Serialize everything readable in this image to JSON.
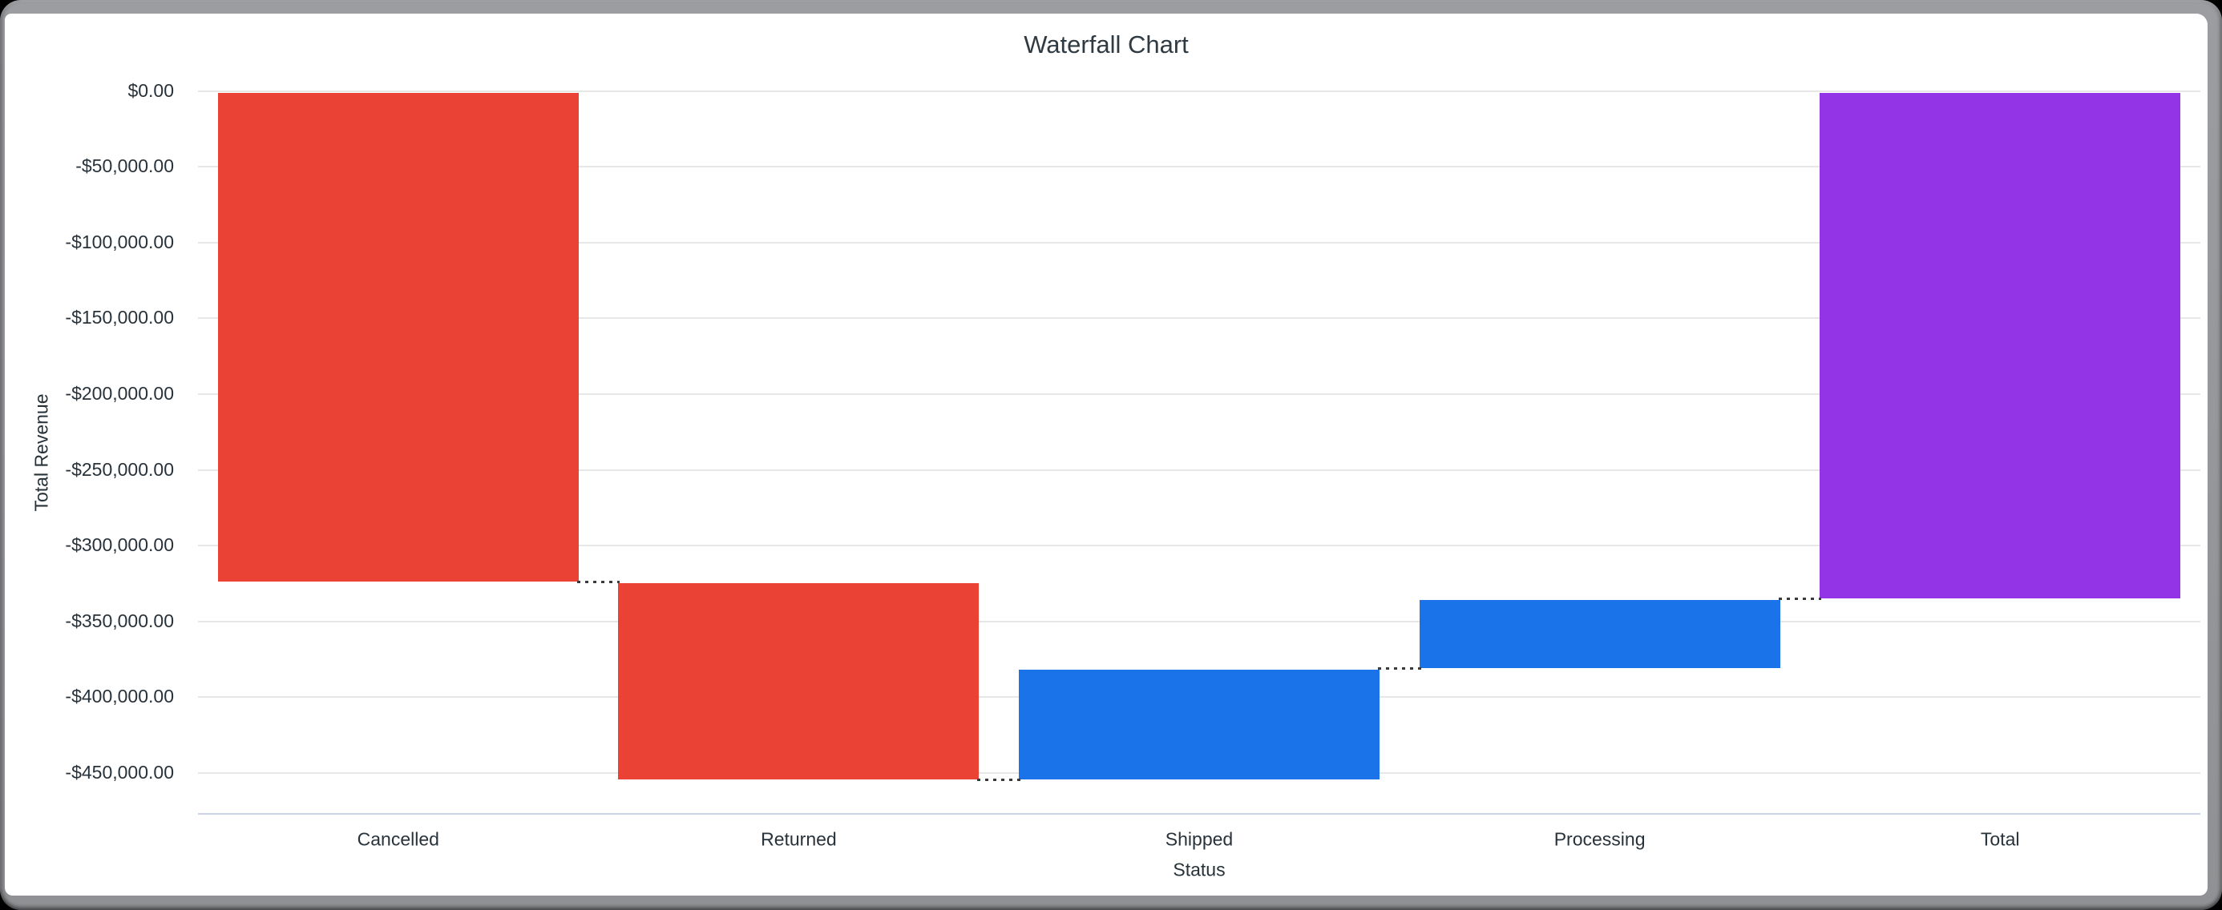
{
  "window": {
    "background_color": "#000000",
    "frame_color": "#95979b",
    "card_color": "#ffffff"
  },
  "chart": {
    "title": "Waterfall Chart",
    "x_axis_title": "Status",
    "y_axis_title": "Total Revenue"
  },
  "chart_data": {
    "type": "bar",
    "subtype": "waterfall",
    "title": "Waterfall Chart",
    "xlabel": "Status",
    "ylabel": "Total Revenue",
    "categories": [
      "Cancelled",
      "Returned",
      "Shipped",
      "Processing",
      "Total"
    ],
    "bars": [
      {
        "label": "Cancelled",
        "kind": "decrease",
        "start": 0,
        "end": -323850,
        "delta": -323850,
        "color": "#EA4335"
      },
      {
        "label": "Returned",
        "kind": "decrease",
        "start": -323850,
        "end": -454250,
        "delta": -130400,
        "color": "#EA4335"
      },
      {
        "label": "Shipped",
        "kind": "increase",
        "start": -454250,
        "end": -380900,
        "delta": 73350,
        "color": "#1A73E8"
      },
      {
        "label": "Processing",
        "kind": "increase",
        "start": -380900,
        "end": -335000,
        "delta": 45900,
        "color": "#1A73E8"
      },
      {
        "label": "Total",
        "kind": "total",
        "start": 0,
        "end": -335000,
        "delta": -335000,
        "color": "#9334E6"
      }
    ],
    "y_ticks": [
      {
        "value": 0,
        "label": "$0.00"
      },
      {
        "value": -50000,
        "label": "-$50,000.00"
      },
      {
        "value": -100000,
        "label": "-$100,000.00"
      },
      {
        "value": -150000,
        "label": "-$150,000.00"
      },
      {
        "value": -200000,
        "label": "-$200,000.00"
      },
      {
        "value": -250000,
        "label": "-$250,000.00"
      },
      {
        "value": -300000,
        "label": "-$300,000.00"
      },
      {
        "value": -350000,
        "label": "-$350,000.00"
      },
      {
        "value": -400000,
        "label": "-$400,000.00"
      },
      {
        "value": -450000,
        "label": "-$450,000.00"
      }
    ],
    "ylim": [
      -477000,
      0
    ],
    "y_tick_interval": 50000,
    "grid": true,
    "legend": "none",
    "connector_style": "dotted",
    "bar_width_ratio": 0.9,
    "colors": {
      "decrease": "#EA4335",
      "increase": "#1A73E8",
      "total": "#9334E6",
      "gridline": "#e7e7e7",
      "x_axis_line": "#cbd4e4",
      "connector": "#3a3a3a",
      "text": "#263238"
    }
  }
}
